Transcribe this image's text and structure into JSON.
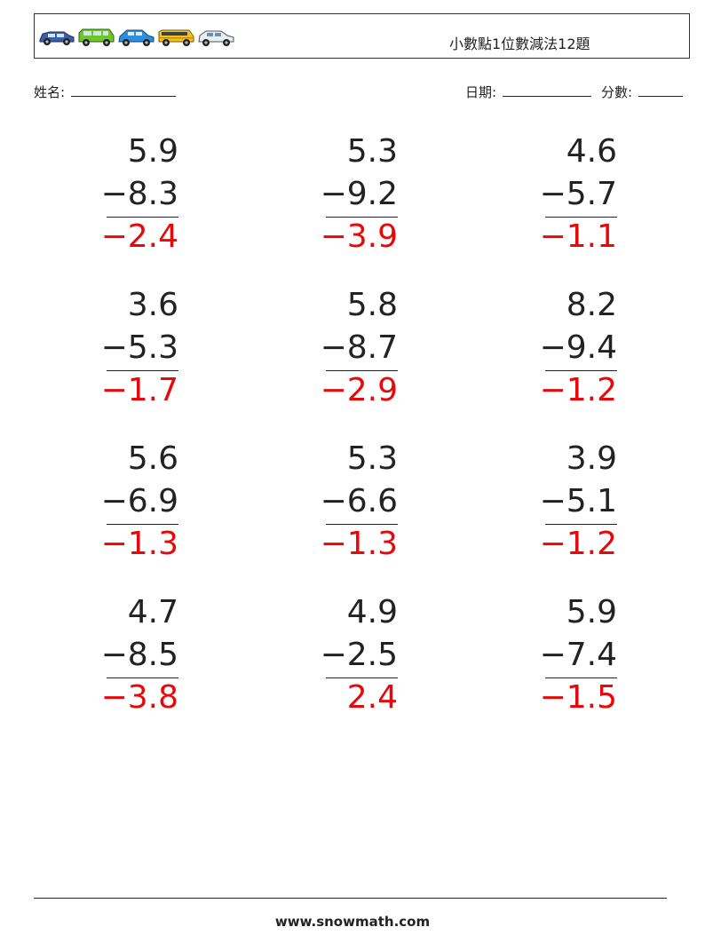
{
  "header": {
    "title": "小數點1位數減法12題",
    "car_icons": [
      "sedan-car-icon",
      "green-van-icon",
      "blue-hatchback-icon",
      "yellow-minibus-icon",
      "white-suv-icon"
    ],
    "car_colors": [
      "#3a5fa8",
      "#6fc42b",
      "#2e8fe0",
      "#f2c418",
      "#e8eef2"
    ]
  },
  "info": {
    "name_label": "姓名:",
    "date_label": "日期:",
    "score_label": "分數:"
  },
  "problems": [
    {
      "top": "5.9",
      "bottom": "−8.3",
      "answer": "−2.4"
    },
    {
      "top": "5.3",
      "bottom": "−9.2",
      "answer": "−3.9"
    },
    {
      "top": "4.6",
      "bottom": "−5.7",
      "answer": "−1.1"
    },
    {
      "top": "3.6",
      "bottom": "−5.3",
      "answer": "−1.7"
    },
    {
      "top": "5.8",
      "bottom": "−8.7",
      "answer": "−2.9"
    },
    {
      "top": "8.2",
      "bottom": "−9.4",
      "answer": "−1.2"
    },
    {
      "top": "5.6",
      "bottom": "−6.9",
      "answer": "−1.3"
    },
    {
      "top": "5.3",
      "bottom": "−6.6",
      "answer": "−1.3"
    },
    {
      "top": "3.9",
      "bottom": "−5.1",
      "answer": "−1.2"
    },
    {
      "top": "4.7",
      "bottom": "−8.5",
      "answer": "−3.8"
    },
    {
      "top": "4.9",
      "bottom": "−2.5",
      "answer": "2.4"
    },
    {
      "top": "5.9",
      "bottom": "−7.4",
      "answer": "−1.5"
    }
  ],
  "answer_color": "#e8080a",
  "footer": {
    "site": "www.snowmath.com"
  }
}
